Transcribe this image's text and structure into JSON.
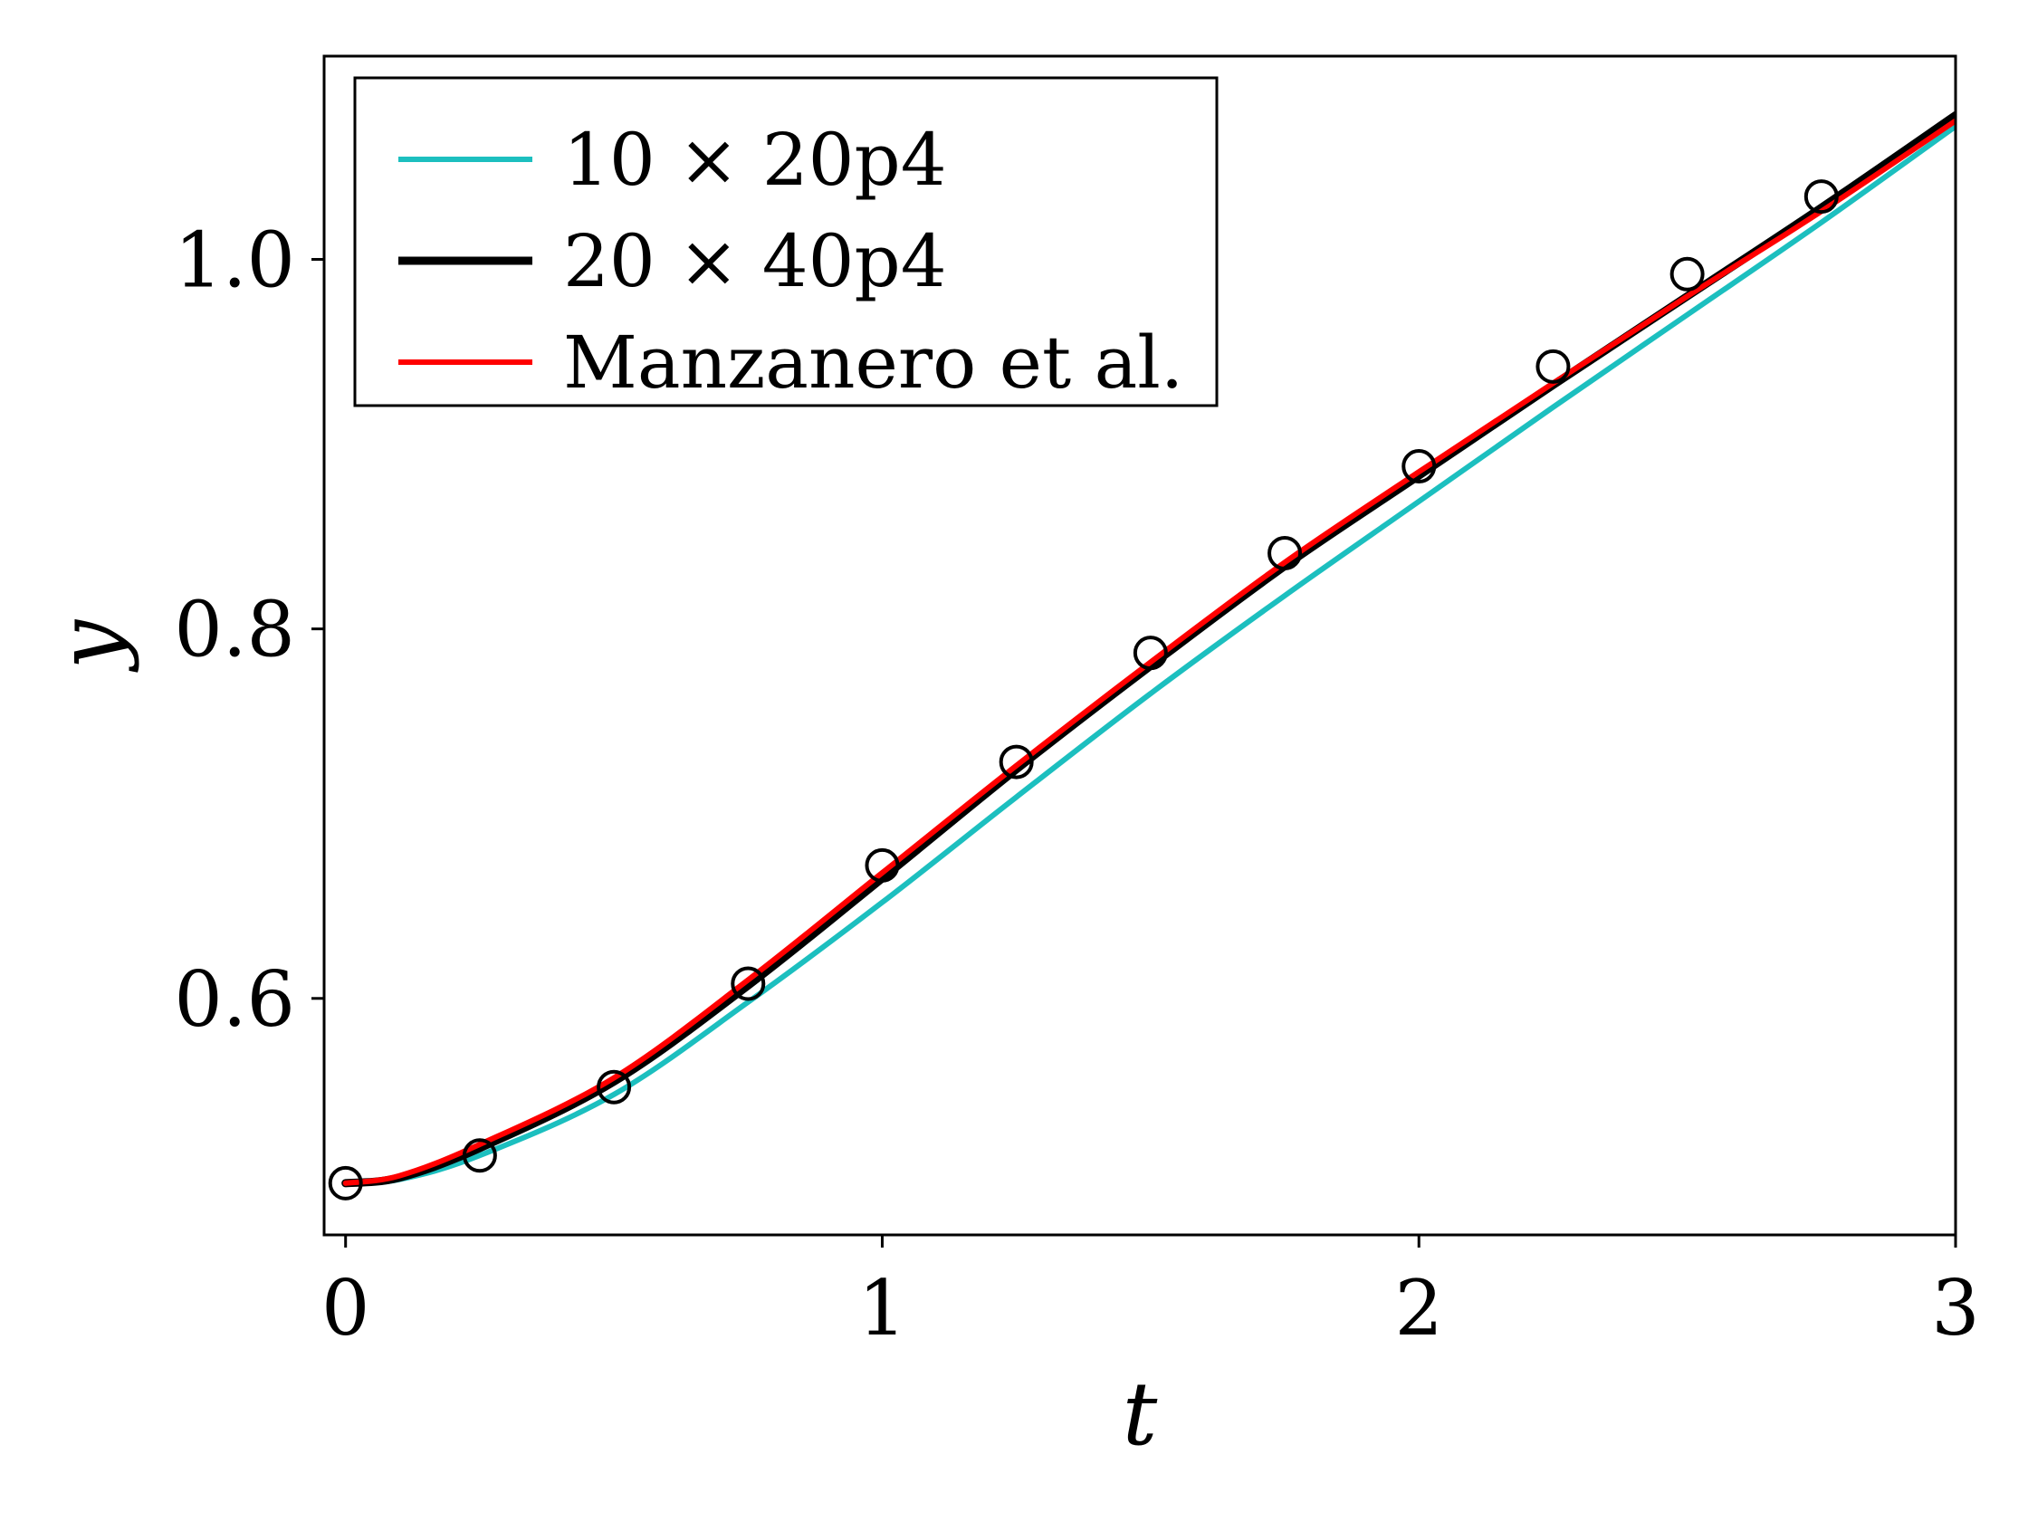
{
  "chart_data": {
    "type": "line",
    "xlabel": "t",
    "ylabel": "y",
    "xlim": [
      -0.04,
      3.0
    ],
    "ylim": [
      0.472,
      1.11
    ],
    "xticks": [
      0,
      1,
      2,
      3
    ],
    "xtick_labels": [
      "0",
      "1",
      "2",
      "3"
    ],
    "yticks": [
      0.6,
      0.8,
      1.0
    ],
    "ytick_labels": [
      "0.6",
      "0.8",
      "1.0"
    ],
    "grid": false,
    "legend_position": "top-left",
    "series": [
      {
        "name": "10 × 20p4",
        "color": "#1cbfbf",
        "style": "line",
        "x": [
          0,
          0.1,
          0.25,
          0.5,
          0.75,
          1.0,
          1.25,
          1.5,
          1.75,
          2.0,
          2.25,
          2.5,
          2.75,
          3.0
        ],
        "y": [
          0.5,
          0.502,
          0.515,
          0.548,
          0.598,
          0.652,
          0.709,
          0.765,
          0.818,
          0.869,
          0.92,
          0.97,
          1.02,
          1.072
        ]
      },
      {
        "name": "20 × 40p4",
        "color": "#000000",
        "style": "line",
        "x": [
          0,
          0.1,
          0.25,
          0.5,
          0.75,
          1.0,
          1.25,
          1.5,
          1.75,
          2.0,
          2.25,
          2.5,
          2.75,
          3.0
        ],
        "y": [
          0.5,
          0.503,
          0.519,
          0.555,
          0.607,
          0.665,
          0.724,
          0.78,
          0.834,
          0.883,
          0.932,
          0.98,
          1.028,
          1.078
        ]
      },
      {
        "name": "Manzanero et al.",
        "color": "#ff0000",
        "style": "line",
        "x": [
          0,
          0.1,
          0.25,
          0.5,
          0.75,
          1.0,
          1.25,
          1.5,
          1.75,
          2.0,
          2.25,
          2.5,
          2.75,
          3.0
        ],
        "y": [
          0.5,
          0.504,
          0.521,
          0.557,
          0.61,
          0.668,
          0.726,
          0.782,
          0.836,
          0.885,
          0.933,
          0.98,
          1.026,
          1.075
        ]
      },
      {
        "name": "",
        "color": "#000000",
        "style": "marker",
        "x": [
          0,
          0.25,
          0.5,
          0.75,
          1.0,
          1.25,
          1.5,
          1.75,
          2.0,
          2.25,
          2.5,
          2.75
        ],
        "y": [
          0.5,
          0.515,
          0.552,
          0.608,
          0.672,
          0.728,
          0.787,
          0.841,
          0.888,
          0.942,
          0.992,
          1.034
        ]
      }
    ]
  }
}
